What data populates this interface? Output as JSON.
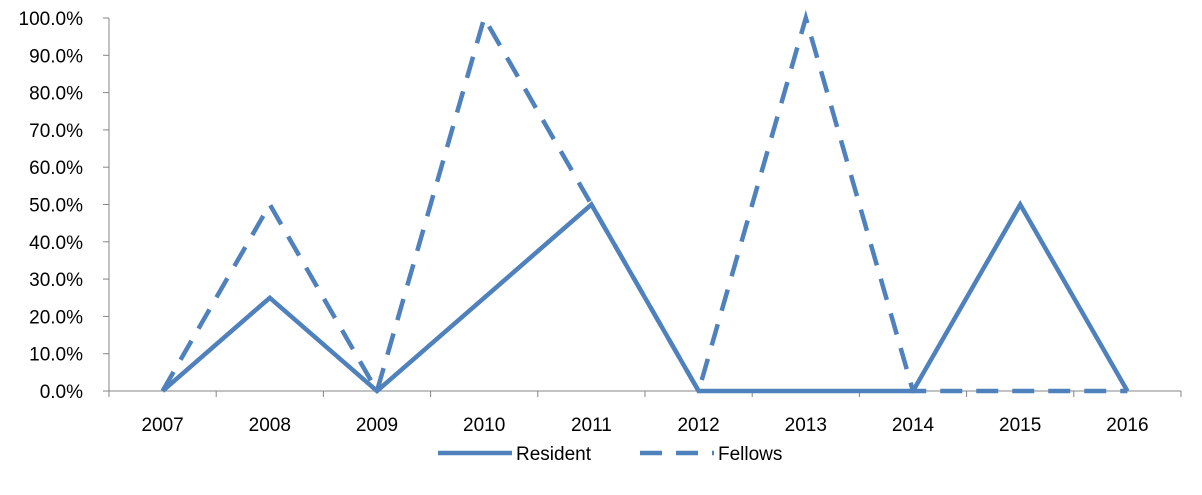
{
  "chart_data": {
    "type": "line",
    "title": "",
    "xlabel": "",
    "ylabel": "",
    "categories": [
      "2007",
      "2008",
      "2009",
      "2010",
      "2011",
      "2012",
      "2013",
      "2014",
      "2015",
      "2016"
    ],
    "y_ticks": [
      "0.0%",
      "10.0%",
      "20.0%",
      "30.0%",
      "40.0%",
      "50.0%",
      "60.0%",
      "70.0%",
      "80.0%",
      "90.0%",
      "100.0%"
    ],
    "ylim": [
      0,
      100
    ],
    "y_unit": "%",
    "grid": false,
    "legend_position": "bottom",
    "series": [
      {
        "name": "Resident",
        "style": "solid",
        "color": "#4f81bd",
        "values": [
          0,
          25,
          0,
          25,
          50,
          0,
          0,
          0,
          50,
          0
        ]
      },
      {
        "name": "Fellows",
        "style": "dashed",
        "color": "#4f81bd",
        "values": [
          0,
          50,
          0,
          100,
          50,
          0,
          100,
          0,
          0,
          0
        ]
      }
    ]
  }
}
